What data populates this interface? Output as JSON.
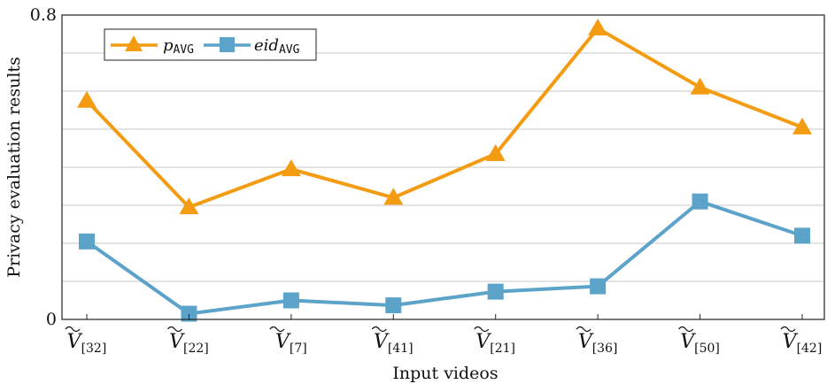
{
  "chart_data": {
    "type": "line",
    "title": "",
    "xlabel": "Input videos",
    "ylabel": "Privacy evaluation results",
    "ylim": [
      0,
      0.8
    ],
    "y_ticks": [
      {
        "value": 0,
        "label": "0"
      },
      {
        "value": 0.8,
        "label": "0.8"
      }
    ],
    "y_gridlines": [
      0.1,
      0.2,
      0.3,
      0.4,
      0.5,
      0.6,
      0.7,
      0.8
    ],
    "grid": true,
    "legend_position": "top-left",
    "categories": [
      {
        "base": "V",
        "sub": "[32]"
      },
      {
        "base": "V",
        "sub": "[22]"
      },
      {
        "base": "V",
        "sub": "[7]"
      },
      {
        "base": "V",
        "sub": "[41]"
      },
      {
        "base": "V",
        "sub": "[21]"
      },
      {
        "base": "V",
        "sub": "[36]"
      },
      {
        "base": "V",
        "sub": "[50]"
      },
      {
        "base": "V",
        "sub": "[42]"
      }
    ],
    "series": [
      {
        "name": "p_AVG",
        "legend_main": "p",
        "legend_sub": "AVG",
        "color": "#f39c12",
        "marker": "triangle",
        "values": [
          0.575,
          0.295,
          0.395,
          0.32,
          0.435,
          0.765,
          0.61,
          0.505
        ]
      },
      {
        "name": "eid_AVG",
        "legend_main": "eid",
        "legend_sub": "AVG",
        "color": "#5ba3c9",
        "marker": "square",
        "values": [
          0.205,
          0.015,
          0.05,
          0.037,
          0.073,
          0.087,
          0.31,
          0.22
        ]
      }
    ]
  }
}
